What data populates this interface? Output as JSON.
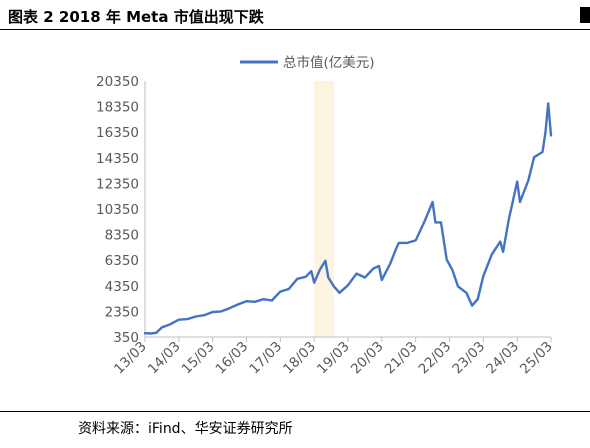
{
  "figure": {
    "title": "图表 2 2018 年 Meta 市值出现下跌",
    "source": "资料来源：iFind、华安证券研究所"
  },
  "colors": {
    "line": "#4472C4",
    "highlight": "#FDF3E1",
    "axis": "#BFBFBF",
    "text": "#595959"
  },
  "chart_data": {
    "type": "line",
    "title": "",
    "xlabel": "",
    "ylabel": "",
    "legend": {
      "position": "top-center",
      "entries": [
        "总市值(亿美元)"
      ]
    },
    "x_tick_labels": [
      "13/03",
      "14/03",
      "15/03",
      "16/03",
      "17/03",
      "18/03",
      "19/03",
      "20/03",
      "21/03",
      "22/03",
      "23/03",
      "24/03",
      "25/03"
    ],
    "y_tick_labels": [
      "350",
      "2350",
      "4350",
      "6350",
      "8350",
      "10350",
      "12350",
      "14350",
      "16350",
      "18350",
      "20350"
    ],
    "ylim": [
      350,
      20350
    ],
    "xlim": [
      "2013-03",
      "2025-03"
    ],
    "grid": false,
    "highlight_band": {
      "from": "2018-03",
      "to": "2018-10"
    },
    "series": [
      {
        "name": "总市值(亿美元)",
        "x": [
          "2013-03",
          "2013-05",
          "2013-07",
          "2013-09",
          "2013-12",
          "2014-03",
          "2014-06",
          "2014-09",
          "2014-12",
          "2015-03",
          "2015-06",
          "2015-09",
          "2015-12",
          "2016-03",
          "2016-06",
          "2016-09",
          "2016-12",
          "2017-03",
          "2017-06",
          "2017-09",
          "2017-12",
          "2018-02",
          "2018-03",
          "2018-05",
          "2018-07",
          "2018-08",
          "2018-10",
          "2018-12",
          "2019-03",
          "2019-06",
          "2019-09",
          "2019-12",
          "2020-02",
          "2020-03",
          "2020-06",
          "2020-08",
          "2020-09",
          "2020-12",
          "2021-03",
          "2021-06",
          "2021-09",
          "2021-10",
          "2021-12",
          "2022-02",
          "2022-04",
          "2022-06",
          "2022-09",
          "2022-11",
          "2023-01",
          "2023-03",
          "2023-06",
          "2023-09",
          "2023-10",
          "2023-12",
          "2024-03",
          "2024-04",
          "2024-07",
          "2024-09",
          "2024-12",
          "2025-01",
          "2025-02",
          "2025-03"
        ],
        "y": [
          650,
          620,
          680,
          1100,
          1350,
          1700,
          1750,
          1950,
          2050,
          2300,
          2350,
          2600,
          2900,
          3150,
          3100,
          3300,
          3200,
          3900,
          4100,
          4900,
          5050,
          5500,
          4600,
          5600,
          6300,
          5000,
          4300,
          3800,
          4400,
          5300,
          5000,
          5700,
          5900,
          4800,
          6100,
          7200,
          7700,
          7700,
          7900,
          9300,
          10900,
          9300,
          9300,
          6400,
          5600,
          4300,
          3800,
          2800,
          3300,
          5100,
          6800,
          7800,
          7000,
          9500,
          12500,
          10900,
          12600,
          14400,
          14800,
          16300,
          18600,
          16100
        ]
      }
    ]
  }
}
